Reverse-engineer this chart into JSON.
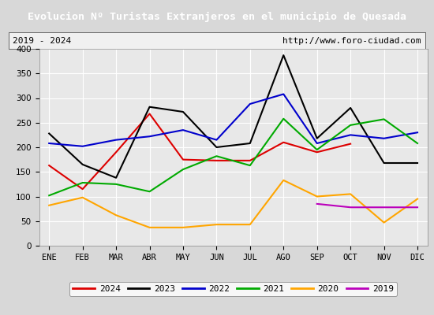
{
  "title": "Evolucion Nº Turistas Extranjeros en el municipio de Quesada",
  "subtitle_left": "2019 - 2024",
  "subtitle_right": "http://www.foro-ciudad.com",
  "title_bg": "#4a86c8",
  "title_color": "#ffffff",
  "months": [
    "ENE",
    "FEB",
    "MAR",
    "ABR",
    "MAY",
    "JUN",
    "JUL",
    "AGO",
    "SEP",
    "OCT",
    "NOV",
    "DIC"
  ],
  "ylim": [
    0,
    400
  ],
  "yticks": [
    0,
    50,
    100,
    150,
    200,
    250,
    300,
    350,
    400
  ],
  "series": {
    "2024": {
      "color": "#dd0000",
      "values": [
        163,
        115,
        190,
        268,
        175,
        173,
        173,
        210,
        190,
        207,
        null,
        null
      ]
    },
    "2023": {
      "color": "#000000",
      "values": [
        228,
        165,
        138,
        282,
        272,
        200,
        208,
        387,
        218,
        280,
        168,
        168
      ]
    },
    "2022": {
      "color": "#0000cc",
      "values": [
        208,
        202,
        215,
        222,
        235,
        215,
        288,
        308,
        208,
        225,
        218,
        230
      ]
    },
    "2021": {
      "color": "#00aa00",
      "values": [
        102,
        128,
        125,
        110,
        155,
        182,
        163,
        258,
        195,
        245,
        257,
        208
      ]
    },
    "2020": {
      "color": "#ffa500",
      "values": [
        82,
        98,
        62,
        37,
        37,
        43,
        43,
        133,
        100,
        105,
        47,
        95
      ]
    },
    "2019": {
      "color": "#bb00bb",
      "values": [
        null,
        null,
        null,
        null,
        null,
        null,
        null,
        null,
        85,
        78,
        78,
        78
      ]
    }
  },
  "legend_order": [
    "2024",
    "2023",
    "2022",
    "2021",
    "2020",
    "2019"
  ],
  "bg_color": "#d8d8d8",
  "plot_bg": "#e8e8e8",
  "grid_color": "#ffffff",
  "subtitle_box_color": "#f0f0f0",
  "subtitle_border_color": "#666666"
}
